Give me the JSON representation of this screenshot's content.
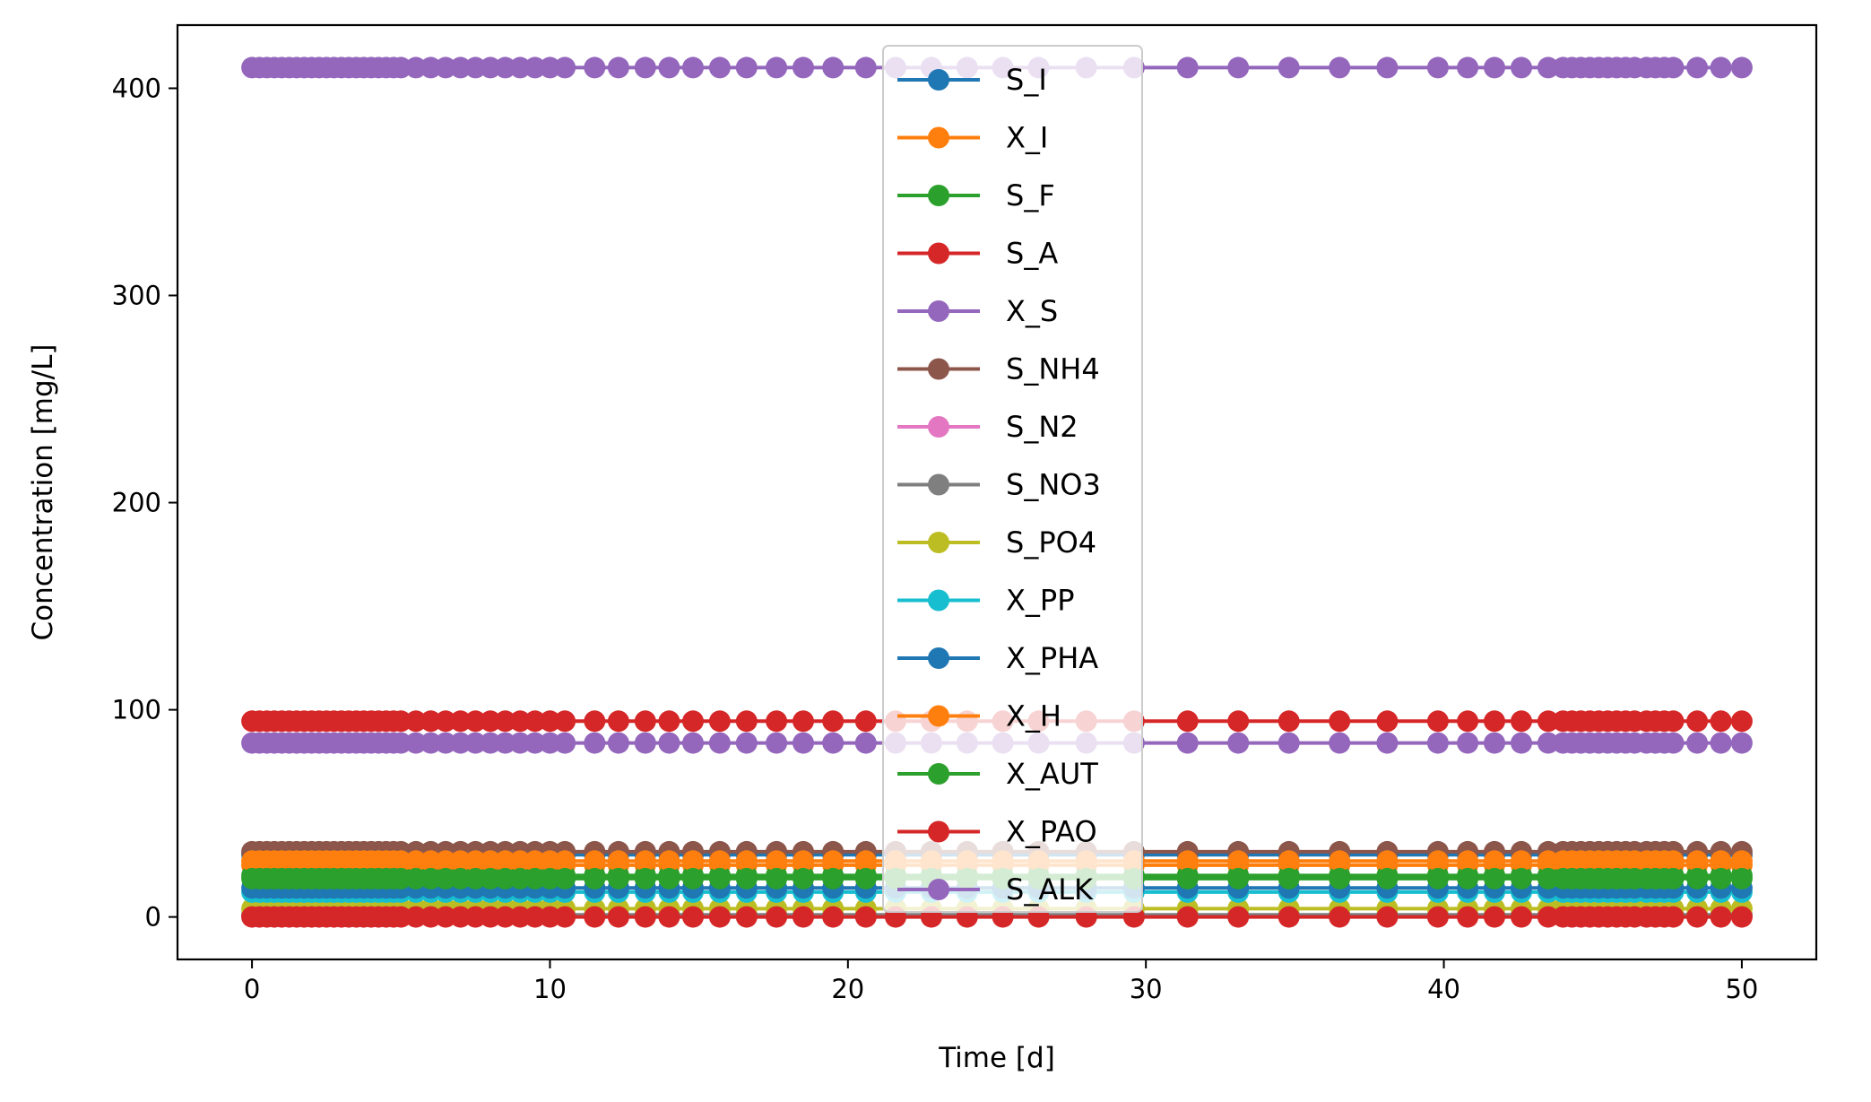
{
  "chart_data": {
    "type": "line",
    "xlabel": "Time [d]",
    "ylabel": "Concentration [mg/L]",
    "xlim": [
      -2.5,
      52.5
    ],
    "ylim": [
      -20.5,
      430.5
    ],
    "xticks": [
      0,
      10,
      20,
      30,
      40,
      50
    ],
    "yticks": [
      0,
      100,
      200,
      300,
      400
    ],
    "grid": false,
    "legend_position": "upper center",
    "marker": "circle",
    "x": [
      0,
      0.25,
      0.5,
      0.75,
      1,
      1.25,
      1.5,
      1.75,
      2,
      2.25,
      2.5,
      2.75,
      3,
      3.25,
      3.5,
      3.75,
      4,
      4.25,
      4.5,
      4.75,
      5,
      5.5,
      6,
      6.5,
      7,
      7.5,
      8,
      8.5,
      9,
      9.5,
      10,
      10.5,
      11.5,
      12.3,
      13.2,
      14,
      14.8,
      15.7,
      16.6,
      17.6,
      18.5,
      19.5,
      20.6,
      21.6,
      22.8,
      24,
      25.2,
      26.4,
      28,
      29.6,
      31.4,
      33.1,
      34.8,
      36.5,
      38.1,
      39.8,
      40.8,
      41.7,
      42.6,
      43.5,
      44,
      44.3,
      44.6,
      44.9,
      45.2,
      45.5,
      45.8,
      46.1,
      46.4,
      46.8,
      47.1,
      47.4,
      47.7,
      48.5,
      49.3,
      50
    ],
    "series": [
      {
        "name": "S_I",
        "color": "#1f77b4",
        "value": 30
      },
      {
        "name": "X_I",
        "color": "#ff7f0e",
        "value": 25
      },
      {
        "name": "S_F",
        "color": "#2ca02c",
        "value": 20
      },
      {
        "name": "S_A",
        "color": "#d62728",
        "value": 94.5
      },
      {
        "name": "X_S",
        "color": "#9467bd",
        "value": 410
      },
      {
        "name": "S_NH4",
        "color": "#8c564b",
        "value": 31.5
      },
      {
        "name": "S_N2",
        "color": "#e377c2",
        "value": 0.5
      },
      {
        "name": "S_NO3",
        "color": "#7f7f7f",
        "value": 1
      },
      {
        "name": "S_PO4",
        "color": "#bcbd22",
        "value": 4
      },
      {
        "name": "X_PP",
        "color": "#17becf",
        "value": 12
      },
      {
        "name": "X_PHA",
        "color": "#1f77b4",
        "value": 14
      },
      {
        "name": "X_H",
        "color": "#ff7f0e",
        "value": 27
      },
      {
        "name": "X_AUT",
        "color": "#2ca02c",
        "value": 18.5
      },
      {
        "name": "X_PAO",
        "color": "#d62728",
        "value": 0
      },
      {
        "name": "S_ALK",
        "color": "#9467bd",
        "value": 84
      }
    ]
  }
}
